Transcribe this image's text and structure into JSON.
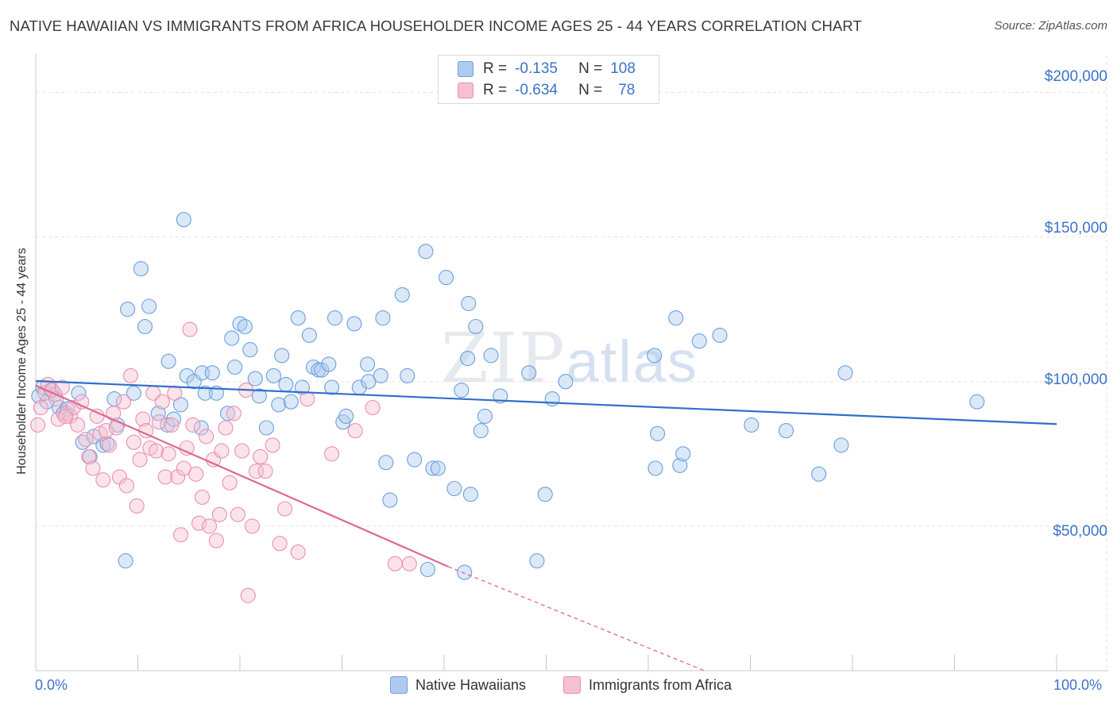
{
  "title": "NATIVE HAWAIIAN VS IMMIGRANTS FROM AFRICA HOUSEHOLDER INCOME AGES 25 - 44 YEARS CORRELATION CHART",
  "source": "Source: ZipAtlas.com",
  "watermark": {
    "a": "ZIP",
    "b": "atlas"
  },
  "colors": {
    "blue": "#6c9fdc",
    "blue_fill": "#aecbef",
    "blue_line": "#2f6fca",
    "pink": "#e98fae",
    "pink_fill": "#f6c0d2",
    "pink_line": "#e06890",
    "axis_text": "#3a73c8",
    "grid": "#e3e3e3"
  },
  "legend": {
    "rows": [
      {
        "r_label": "R =",
        "r_value": "-0.135",
        "n_label": "N =",
        "n_value": "108"
      },
      {
        "r_label": "R =",
        "r_value": "-0.634",
        "n_label": "N =",
        "n_value": "78"
      }
    ]
  },
  "bottom_legend": {
    "blue": "Native Hawaiians",
    "pink": "Immigrants from Africa"
  },
  "chart_data": {
    "type": "scatter",
    "title": "NATIVE HAWAIIAN VS IMMIGRANTS FROM AFRICA HOUSEHOLDER INCOME AGES 25 - 44 YEARS CORRELATION CHART",
    "xlabel": "",
    "ylabel": "Householder Income Ages 25 - 44 years",
    "xlim": [
      0,
      100
    ],
    "ylim": [
      0,
      210000
    ],
    "x_tick_labels": [
      "0.0%",
      "100.0%"
    ],
    "y_ticks": [
      50000,
      100000,
      150000,
      200000
    ],
    "y_tick_labels": [
      "$50,000",
      "$100,000",
      "$150,000",
      "$200,000"
    ],
    "grid": "horizontal dashed",
    "legend_position": "top-center",
    "series": [
      {
        "name": "Native Hawaiians",
        "r": -0.135,
        "n": 108,
        "trend": {
          "x": [
            0,
            100
          ],
          "y": [
            100200,
            85300
          ]
        },
        "points": [
          [
            0.3,
            95000
          ],
          [
            0.7,
            98000
          ],
          [
            1.1,
            93000
          ],
          [
            1.5,
            97000
          ],
          [
            1.9,
            95500
          ],
          [
            2.3,
            91000
          ],
          [
            2.7,
            89000
          ],
          [
            3.1,
            90500
          ],
          [
            4.2,
            96000
          ],
          [
            4.6,
            79000
          ],
          [
            5.3,
            74000
          ],
          [
            5.7,
            81000
          ],
          [
            6.6,
            78000
          ],
          [
            7.0,
            78500
          ],
          [
            7.7,
            94000
          ],
          [
            8.0,
            85000
          ],
          [
            9.0,
            125000
          ],
          [
            9.6,
            96000
          ],
          [
            10.3,
            139000
          ],
          [
            10.7,
            119000
          ],
          [
            11.1,
            126000
          ],
          [
            12.0,
            89000
          ],
          [
            12.9,
            85000
          ],
          [
            13.0,
            107000
          ],
          [
            13.5,
            87000
          ],
          [
            14.2,
            92000
          ],
          [
            14.5,
            156000
          ],
          [
            14.8,
            102000
          ],
          [
            15.5,
            100000
          ],
          [
            16.2,
            84000
          ],
          [
            16.3,
            103000
          ],
          [
            16.6,
            96000
          ],
          [
            17.3,
            103000
          ],
          [
            17.7,
            96000
          ],
          [
            18.8,
            89000
          ],
          [
            19.2,
            115000
          ],
          [
            19.5,
            105000
          ],
          [
            20.0,
            120000
          ],
          [
            20.5,
            119000
          ],
          [
            21.0,
            111000
          ],
          [
            21.5,
            101000
          ],
          [
            21.9,
            95000
          ],
          [
            22.6,
            84000
          ],
          [
            23.3,
            102000
          ],
          [
            23.8,
            92000
          ],
          [
            24.1,
            109000
          ],
          [
            24.5,
            99000
          ],
          [
            25.0,
            93000
          ],
          [
            25.7,
            122000
          ],
          [
            26.1,
            98000
          ],
          [
            26.8,
            116000
          ],
          [
            27.2,
            105000
          ],
          [
            27.7,
            104000
          ],
          [
            28.0,
            104000
          ],
          [
            28.7,
            106000
          ],
          [
            29.0,
            98000
          ],
          [
            29.3,
            122000
          ],
          [
            30.1,
            86000
          ],
          [
            30.4,
            88000
          ],
          [
            31.2,
            120000
          ],
          [
            31.7,
            98000
          ],
          [
            32.5,
            106000
          ],
          [
            32.6,
            100000
          ],
          [
            33.8,
            102000
          ],
          [
            34.0,
            122000
          ],
          [
            34.3,
            72000
          ],
          [
            34.7,
            59000
          ],
          [
            35.9,
            130000
          ],
          [
            36.4,
            102000
          ],
          [
            37.1,
            73000
          ],
          [
            38.2,
            145000
          ],
          [
            38.4,
            35000
          ],
          [
            38.9,
            70000
          ],
          [
            39.4,
            70000
          ],
          [
            40.2,
            136000
          ],
          [
            41.0,
            63000
          ],
          [
            41.7,
            97000
          ],
          [
            42.0,
            34000
          ],
          [
            42.3,
            108000
          ],
          [
            42.4,
            127000
          ],
          [
            42.6,
            61000
          ],
          [
            43.1,
            119000
          ],
          [
            43.6,
            83000
          ],
          [
            44.0,
            88000
          ],
          [
            44.6,
            109000
          ],
          [
            45.5,
            95000
          ],
          [
            48.3,
            103000
          ],
          [
            49.1,
            38000
          ],
          [
            49.9,
            61000
          ],
          [
            50.6,
            94000
          ],
          [
            51.9,
            100000
          ],
          [
            60.6,
            109000
          ],
          [
            60.7,
            70000
          ],
          [
            60.9,
            82000
          ],
          [
            62.7,
            122000
          ],
          [
            63.1,
            71000
          ],
          [
            63.4,
            75000
          ],
          [
            65.0,
            114000
          ],
          [
            67.0,
            116000
          ],
          [
            70.1,
            85000
          ],
          [
            73.5,
            83000
          ],
          [
            76.7,
            68000
          ],
          [
            78.9,
            78000
          ],
          [
            79.3,
            103000
          ],
          [
            92.2,
            93000
          ],
          [
            8.8,
            38000
          ]
        ]
      },
      {
        "name": "Immigrants from Africa",
        "r": -0.634,
        "n": 78,
        "trend": {
          "x": [
            0,
            40.4
          ],
          "y": [
            98600,
            36000
          ]
        },
        "trend_dashed": {
          "x": [
            40.4,
            65.5
          ],
          "y": [
            36000,
            0
          ]
        },
        "points": [
          [
            0.2,
            85000
          ],
          [
            0.5,
            91000
          ],
          [
            0.9,
            96000
          ],
          [
            1.2,
            99000
          ],
          [
            1.6,
            97000
          ],
          [
            2.0,
            94000
          ],
          [
            2.2,
            87000
          ],
          [
            2.6,
            98000
          ],
          [
            3.0,
            89000
          ],
          [
            3.4,
            88000
          ],
          [
            3.7,
            91000
          ],
          [
            4.1,
            85000
          ],
          [
            4.5,
            93000
          ],
          [
            4.9,
            80000
          ],
          [
            5.2,
            74000
          ],
          [
            5.6,
            70000
          ],
          [
            6.0,
            88000
          ],
          [
            6.3,
            82000
          ],
          [
            6.6,
            66000
          ],
          [
            6.9,
            83000
          ],
          [
            7.2,
            78000
          ],
          [
            7.6,
            89000
          ],
          [
            7.9,
            84000
          ],
          [
            8.2,
            67000
          ],
          [
            8.6,
            93000
          ],
          [
            8.9,
            64000
          ],
          [
            9.3,
            102000
          ],
          [
            9.6,
            79000
          ],
          [
            9.9,
            57000
          ],
          [
            10.2,
            73000
          ],
          [
            10.5,
            87000
          ],
          [
            10.8,
            83000
          ],
          [
            11.2,
            77000
          ],
          [
            11.5,
            96000
          ],
          [
            11.8,
            76000
          ],
          [
            12.1,
            86000
          ],
          [
            12.4,
            93000
          ],
          [
            12.7,
            67000
          ],
          [
            13.0,
            75000
          ],
          [
            13.3,
            85000
          ],
          [
            13.6,
            96000
          ],
          [
            13.9,
            67000
          ],
          [
            14.2,
            47000
          ],
          [
            14.5,
            70000
          ],
          [
            14.8,
            77000
          ],
          [
            15.1,
            118000
          ],
          [
            15.4,
            85000
          ],
          [
            15.7,
            68000
          ],
          [
            16.0,
            51000
          ],
          [
            16.3,
            60000
          ],
          [
            16.7,
            81000
          ],
          [
            17.0,
            50000
          ],
          [
            17.4,
            73000
          ],
          [
            17.7,
            45000
          ],
          [
            18.0,
            54000
          ],
          [
            18.2,
            76000
          ],
          [
            18.6,
            84000
          ],
          [
            19.0,
            65000
          ],
          [
            19.4,
            89000
          ],
          [
            19.8,
            54000
          ],
          [
            20.2,
            76000
          ],
          [
            20.6,
            97000
          ],
          [
            20.8,
            26000
          ],
          [
            21.2,
            50000
          ],
          [
            21.6,
            69000
          ],
          [
            22.0,
            74000
          ],
          [
            22.5,
            69000
          ],
          [
            23.2,
            78000
          ],
          [
            23.9,
            44000
          ],
          [
            24.4,
            56000
          ],
          [
            25.7,
            41000
          ],
          [
            26.6,
            94000
          ],
          [
            29.0,
            75000
          ],
          [
            31.3,
            83000
          ],
          [
            33.0,
            91000
          ],
          [
            35.2,
            37000
          ],
          [
            36.6,
            37000
          ],
          [
            2.9,
            88000
          ]
        ]
      }
    ]
  }
}
